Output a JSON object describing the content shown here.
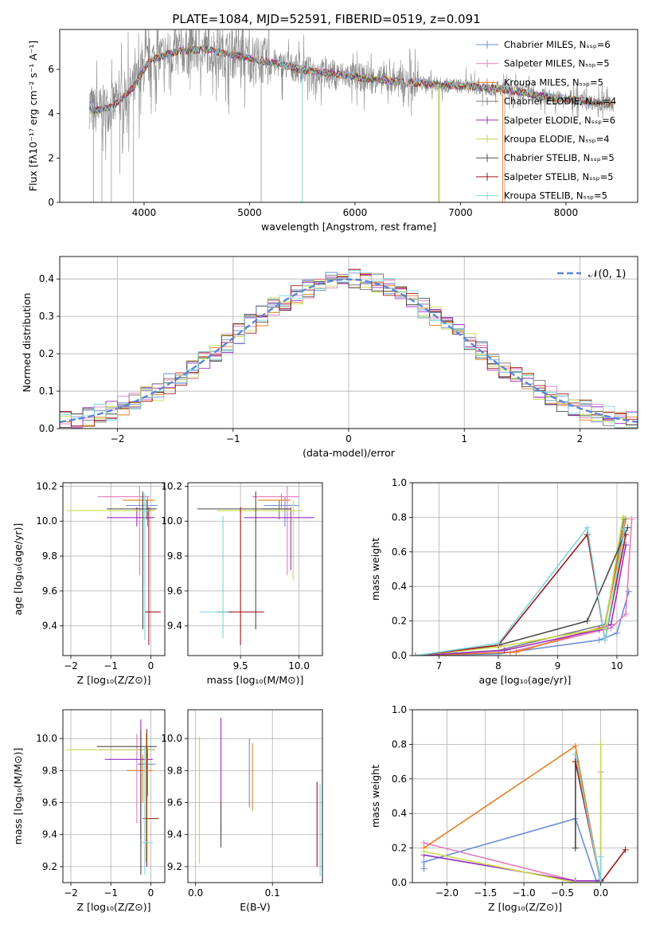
{
  "colors": [
    "#6a8fd8",
    "#e67bc2",
    "#e67e22",
    "#7a7a7a",
    "#9b2ec0",
    "#c9d94a",
    "#4a4a4a",
    "#a01818",
    "#7fd6dc"
  ],
  "chart_data": [
    {
      "id": "spectrum",
      "type": "line",
      "title": "PLATE=1084, MJD=52591, FIBERID=0519, z=0.091",
      "xlabel": "wavelength [Angstrom, rest frame]",
      "ylabel": "Flux [fλ10⁻¹⁷ erg cm⁻² s⁻¹ A⁻¹]",
      "xlim": [
        3200,
        8680
      ],
      "ylim": [
        0,
        7.8
      ],
      "xticks": [
        4000,
        5000,
        6000,
        7000,
        8000
      ],
      "yticks": [
        0,
        2,
        4,
        6
      ],
      "data_continuum": {
        "x": [
          3500,
          3700,
          3900,
          4050,
          4300,
          4600,
          4900,
          5200,
          5500,
          5800,
          6100,
          6400,
          6700,
          7000,
          7300,
          7600,
          7900,
          8200,
          8450
        ],
        "y": [
          4.1,
          4.3,
          5.2,
          6.4,
          6.8,
          6.9,
          6.6,
          6.3,
          6.0,
          5.8,
          5.6,
          5.45,
          5.35,
          5.25,
          5.15,
          4.95,
          4.7,
          4.55,
          4.4
        ]
      },
      "legend": [
        "Chabrier MILES, Nₛₛₚ=6",
        "Salpeter MILES, Nₛₛₚ=5",
        "Kroupa MILES, Nₛₛₚ=5",
        "Chabrier ELODIE, Nₛₛₚ=4",
        "Salpeter ELODIE, Nₛₛₚ=6",
        "Kroupa ELODIE, Nₛₛₚ=4",
        "Chabrier STELIB, Nₛₛₚ=5",
        "Salpeter STELIB, Nₛₛₚ=5",
        "Kroupa STELIB, Nₛₛₚ=5"
      ]
    },
    {
      "id": "residuals",
      "type": "line",
      "xlabel": "(data-model)/error",
      "ylabel": "Normed distribution",
      "xlim": [
        -2.5,
        2.5
      ],
      "ylim": [
        0,
        0.46
      ],
      "xticks": [
        -2,
        -1,
        0,
        1,
        2
      ],
      "yticks": [
        0.0,
        0.1,
        0.2,
        0.3,
        0.4
      ],
      "legend": "𝒩(0, 1)",
      "gauss_sigma": 1
    },
    {
      "id": "age-vs-Z",
      "type": "scatter",
      "xlabel": "Z [log₁₀(Z/Z⊙)]",
      "ylabel": "age  [log₁₀(age/yr)]",
      "xlim": [
        -2.2,
        0.35
      ],
      "ylim": [
        9.23,
        10.22
      ],
      "xticks": [
        -2,
        -1,
        0
      ],
      "yticks": [
        9.4,
        9.6,
        9.8,
        10.0,
        10.2
      ],
      "points": [
        {
          "x": -0.08,
          "y": 10.09,
          "xerr": [
            0.55,
            0.25
          ],
          "yerr": [
            0.12,
            0.05
          ]
        },
        {
          "x": -0.28,
          "y": 10.14,
          "xerr": [
            1.05,
            0.25
          ],
          "yerr": [
            0.45,
            0.06
          ]
        },
        {
          "x": -0.2,
          "y": 10.12,
          "xerr": [
            0.5,
            0.3
          ],
          "yerr": [
            0.05,
            0.04
          ]
        },
        {
          "x": -0.1,
          "y": 10.07,
          "xerr": [
            0.3,
            0.2
          ],
          "yerr": [
            0.06,
            0.05
          ]
        },
        {
          "x": -0.35,
          "y": 10.02,
          "xerr": [
            0.75,
            0.45
          ],
          "yerr": [
            0.05,
            0.06
          ]
        },
        {
          "x": -0.15,
          "y": 10.06,
          "xerr": [
            1.95,
            0.25
          ],
          "yerr": [
            0.07,
            0.06
          ]
        },
        {
          "x": -0.2,
          "y": 10.07,
          "xerr": [
            0.9,
            0.35
          ],
          "yerr": [
            0.69,
            0.1
          ]
        },
        {
          "x": -0.05,
          "y": 9.48,
          "xerr": [
            0.1,
            0.3
          ],
          "yerr": [
            0.19,
            0.6
          ]
        },
        {
          "x": -0.15,
          "y": 10.06,
          "xerr": [
            0.1,
            0.1
          ],
          "yerr": [
            0.74,
            0.1
          ]
        }
      ]
    },
    {
      "id": "age-vs-mass",
      "type": "scatter",
      "xlabel": "mass [log₁₀(M/M⊙)]",
      "ylabel": "",
      "xlim": [
        9.05,
        10.2
      ],
      "ylim": [
        9.23,
        10.22
      ],
      "xticks": [
        9.5,
        10.0
      ],
      "yticks": [
        9.4,
        9.6,
        9.8,
        10.0,
        10.2
      ],
      "points": [
        {
          "x": 9.88,
          "y": 10.09,
          "xerr": [
            0.18,
            0.12
          ],
          "yerr": [
            0.12,
            0.05
          ]
        },
        {
          "x": 9.9,
          "y": 10.14,
          "xerr": [
            0.3,
            0.1
          ],
          "yerr": [
            0.45,
            0.06
          ]
        },
        {
          "x": 9.85,
          "y": 10.12,
          "xerr": [
            0.2,
            0.08
          ],
          "yerr": [
            0.05,
            0.04
          ]
        },
        {
          "x": 9.83,
          "y": 10.07,
          "xerr": [
            0.15,
            0.1
          ],
          "yerr": [
            0.06,
            0.05
          ]
        },
        {
          "x": 9.93,
          "y": 10.02,
          "xerr": [
            0.4,
            0.2
          ],
          "yerr": [
            0.3,
            0.06
          ]
        },
        {
          "x": 9.95,
          "y": 10.06,
          "xerr": [
            0.65,
            0.08
          ],
          "yerr": [
            0.4,
            0.06
          ]
        },
        {
          "x": 9.63,
          "y": 10.07,
          "xerr": [
            0.5,
            0.3
          ],
          "yerr": [
            0.69,
            0.1
          ]
        },
        {
          "x": 9.5,
          "y": 9.48,
          "xerr": [
            0.2,
            0.2
          ],
          "yerr": [
            0.19,
            0.6
          ]
        },
        {
          "x": 9.35,
          "y": 9.48,
          "xerr": [
            0.2,
            0.05
          ],
          "yerr": [
            0.15,
            0.55
          ]
        }
      ]
    },
    {
      "id": "weight-vs-age",
      "type": "line",
      "xlabel": "age  [log₁₀(age/yr)]",
      "ylabel": "mass weight",
      "xlim": [
        6.55,
        10.35
      ],
      "ylim": [
        0,
        1.0
      ],
      "xticks": [
        7,
        8,
        9,
        10
      ],
      "yticks": [
        0.0,
        0.2,
        0.4,
        0.6,
        0.8,
        1.0
      ],
      "series": [
        {
          "x": [
            6.6,
            8.0,
            9.7,
            10.0,
            10.2
          ],
          "y": [
            0.0,
            0.01,
            0.09,
            0.13,
            0.37
          ]
        },
        {
          "x": [
            6.6,
            8.2,
            9.9,
            10.15,
            10.25
          ],
          "y": [
            0.0,
            0.02,
            0.16,
            0.24,
            0.79
          ]
        },
        {
          "x": [
            6.6,
            8.3,
            9.8,
            10.15
          ],
          "y": [
            0.0,
            0.02,
            0.17,
            0.79
          ]
        },
        {
          "x": [
            6.6,
            8.0,
            9.8,
            10.12
          ],
          "y": [
            0.0,
            0.03,
            0.18,
            0.79
          ]
        },
        {
          "x": [
            6.6,
            8.1,
            9.7,
            9.9,
            10.15
          ],
          "y": [
            0.0,
            0.03,
            0.15,
            0.18,
            0.64
          ]
        },
        {
          "x": [
            6.6,
            8.0,
            9.8,
            10.1
          ],
          "y": [
            0.0,
            0.05,
            0.16,
            0.8
          ]
        },
        {
          "x": [
            6.6,
            8.0,
            9.5,
            10.18
          ],
          "y": [
            0.0,
            0.06,
            0.2,
            0.74
          ]
        },
        {
          "x": [
            6.6,
            8.0,
            9.5,
            9.8,
            10.15
          ],
          "y": [
            0.0,
            0.06,
            0.7,
            0.09,
            0.7
          ]
        },
        {
          "x": [
            6.6,
            8.0,
            9.5,
            9.8,
            10.13
          ],
          "y": [
            0.0,
            0.07,
            0.74,
            0.09,
            0.73
          ]
        }
      ]
    },
    {
      "id": "mass-vs-Z",
      "type": "scatter",
      "xlabel": "Z [log₁₀(Z/Z⊙)]",
      "ylabel": "mass [log₁₀(M/M⊙)]",
      "xlim": [
        -2.2,
        0.35
      ],
      "ylim": [
        9.1,
        10.18
      ],
      "xticks": [
        -2,
        -1,
        0
      ],
      "yticks": [
        9.2,
        9.4,
        9.6,
        9.8,
        10.0
      ],
      "points": [
        {
          "x": -0.08,
          "y": 9.84,
          "xerr": [
            0.25,
            0.2
          ],
          "yerr": [
            0.2,
            0.1
          ]
        },
        {
          "x": -0.35,
          "y": 9.93,
          "xerr": [
            0.95,
            0.3
          ],
          "yerr": [
            0.46,
            0.1
          ]
        },
        {
          "x": -0.2,
          "y": 9.8,
          "xerr": [
            0.4,
            0.25
          ],
          "yerr": [
            0.2,
            0.1
          ]
        },
        {
          "x": -0.1,
          "y": 9.93,
          "xerr": [
            0.3,
            0.2
          ],
          "yerr": [
            0.15,
            0.1
          ]
        },
        {
          "x": -0.25,
          "y": 9.87,
          "xerr": [
            0.9,
            0.3
          ],
          "yerr": [
            0.5,
            0.25
          ]
        },
        {
          "x": -0.12,
          "y": 9.93,
          "xerr": [
            2.0,
            0.2
          ],
          "yerr": [
            0.7,
            0.1
          ]
        },
        {
          "x": -0.25,
          "y": 9.95,
          "xerr": [
            1.1,
            0.4
          ],
          "yerr": [
            0.8,
            0.1
          ]
        },
        {
          "x": -0.1,
          "y": 9.5,
          "xerr": [
            0.1,
            0.3
          ],
          "yerr": [
            0.3,
            0.56
          ]
        },
        {
          "x": -0.15,
          "y": 9.35,
          "xerr": [
            0.1,
            0.2
          ],
          "yerr": [
            0.2,
            0.6
          ]
        }
      ]
    },
    {
      "id": "mass-vs-EBV",
      "type": "scatter",
      "xlabel": "E(B-V)",
      "ylabel": "",
      "xlim": [
        -0.01,
        0.165
      ],
      "ylim": [
        9.1,
        10.18
      ],
      "xticks": [
        0.0,
        0.1
      ],
      "xticklabels": [
        "0.0",
        "0.1"
      ],
      "yticks": [
        9.2,
        9.4,
        9.6,
        9.8,
        10.0
      ],
      "segments": [
        {
          "x": 0.005,
          "y0": 9.22,
          "y1": 10.01
        },
        {
          "x": 0.033,
          "y0": 9.43,
          "y1": 10.13
        },
        {
          "x": 0.033,
          "y0": 9.32,
          "y1": 9.6
        },
        {
          "x": 0.07,
          "y0": 9.57,
          "y1": 10.0
        },
        {
          "x": 0.074,
          "y0": 9.55,
          "y1": 9.97
        },
        {
          "x": 0.162,
          "y0": 9.14,
          "y1": 9.72
        },
        {
          "x": 0.158,
          "y0": 9.2,
          "y1": 9.73
        }
      ]
    },
    {
      "id": "weight-vs-Z",
      "type": "line",
      "xlabel": "Z [log₁₀(Z/Z⊙)]",
      "ylabel": "mass weight",
      "xlim": [
        -2.45,
        0.48
      ],
      "ylim": [
        0,
        1.0
      ],
      "xticks": [
        -2.0,
        -1.5,
        -1.0,
        -0.5,
        0.0
      ],
      "xticklabels": [
        "−2.0",
        "−1.5",
        "−1.0",
        "−0.5",
        "0.0"
      ],
      "yticks": [
        0.0,
        0.2,
        0.4,
        0.6,
        0.8,
        1.0
      ],
      "series": [
        {
          "x": [
            -2.3,
            -2.3,
            -0.33,
            -0.05,
            0.0
          ],
          "y": [
            0.08,
            0.12,
            0.37,
            0.0,
            0.02
          ]
        },
        {
          "x": [
            -2.3,
            -0.33,
            0.0,
            0.0
          ],
          "y": [
            0.23,
            0.01,
            0.01,
            0.64
          ]
        },
        {
          "x": [
            -2.3,
            -0.33,
            0.0
          ],
          "y": [
            0.2,
            0.79,
            0.0
          ]
        },
        {
          "x": [
            -0.33,
            -0.33,
            0.0
          ],
          "y": [
            0.2,
            0.74,
            0.0
          ]
        },
        {
          "x": [
            -2.3,
            -0.33,
            0.0
          ],
          "y": [
            0.16,
            0.01,
            0.01
          ]
        },
        {
          "x": [
            -2.3,
            -0.33,
            0.0,
            0.0
          ],
          "y": [
            0.18,
            0.0,
            0.0,
            0.8
          ]
        },
        {
          "x": [
            -0.33,
            -0.33,
            0.0
          ],
          "y": [
            0.2,
            0.7,
            0.01
          ]
        },
        {
          "x": [
            -0.33,
            0.0,
            0.32
          ],
          "y": [
            0.7,
            0.0,
            0.19
          ]
        },
        {
          "x": [
            -0.33,
            0.0,
            0.0
          ],
          "y": [
            0.74,
            0.0,
            0.15
          ]
        }
      ]
    }
  ]
}
